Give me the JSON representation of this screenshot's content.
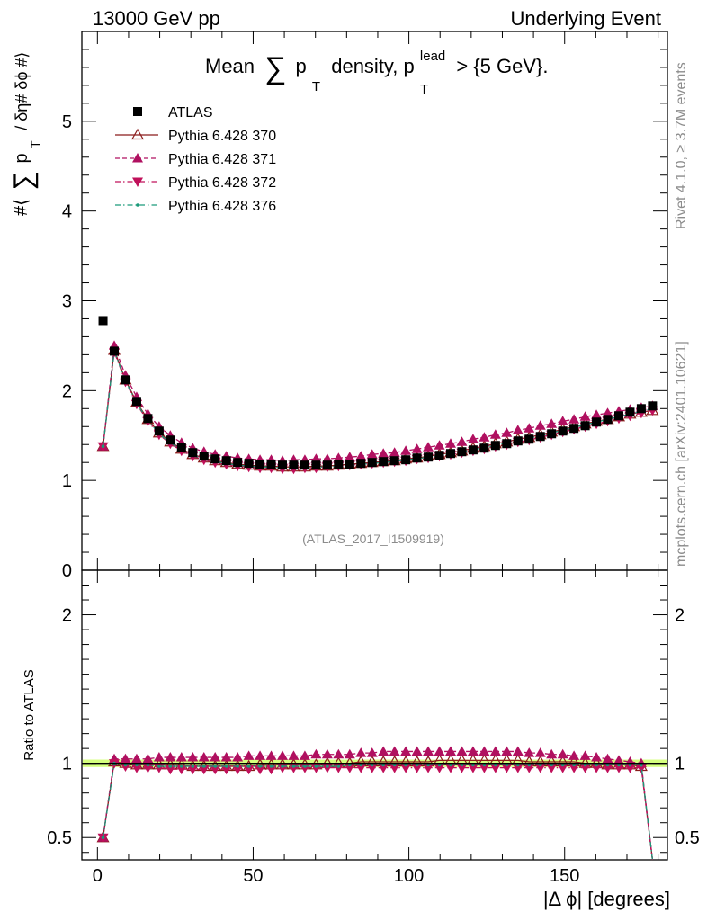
{
  "header": {
    "left": "13000 GeV pp",
    "right": "Underlying Event"
  },
  "side_labels": {
    "rivet": "Rivet 4.1.0, ≥ 3.7M events",
    "mcplots": "mcplots.cern.ch [arXiv:2401.10621]"
  },
  "chart_data": {
    "type": "scatter",
    "title_prefix": "Mean",
    "title_symbol": "∑",
    "title_pt": "p",
    "title_pt_sub": "T",
    "title_middle": "density, p",
    "title_lead_sup": "lead",
    "title_lead_sub": "T",
    "title_suffix": "> {5 GeV}.",
    "analysis_id": "(ATLAS_2017_I1509919)",
    "xlabel": "|Δ ϕ| [degrees]",
    "ylabel_main": "#⟨ ∑ p_T / δη# δϕ #⟩",
    "ylabel_main_parts": {
      "pre": "#⟨",
      "sum": "∑",
      "p": "p",
      "sub": "T",
      "post": "/ δη# δϕ #⟩"
    },
    "ylabel_ratio": "Ratio to ATLAS",
    "xlim": [
      -5,
      183
    ],
    "ylim_main": [
      0,
      6
    ],
    "ylim_ratio": [
      0.35,
      2.3
    ],
    "xticks": [
      "0",
      "50",
      "100",
      "150"
    ],
    "yticks_main": [
      "0",
      "1",
      "2",
      "3",
      "4",
      "5"
    ],
    "yticks_ratio": [
      "0.5",
      "1",
      "2"
    ],
    "x": [
      1.8,
      5.4,
      9.0,
      12.6,
      16.2,
      19.8,
      23.4,
      27.0,
      30.6,
      34.2,
      37.8,
      41.4,
      45.0,
      48.6,
      52.2,
      55.8,
      59.4,
      63.0,
      66.6,
      70.2,
      73.8,
      77.4,
      81.0,
      84.6,
      88.2,
      91.8,
      95.4,
      99.0,
      102.6,
      106.2,
      109.8,
      113.4,
      117.0,
      120.6,
      124.2,
      127.8,
      131.4,
      135.0,
      138.6,
      142.2,
      145.8,
      149.4,
      153.0,
      156.6,
      160.2,
      163.8,
      167.4,
      171.0,
      174.6,
      178.2
    ],
    "series": [
      {
        "name": "ATLAS",
        "marker": "square",
        "color": "#000000",
        "values": [
          2.78,
          2.44,
          2.12,
          1.88,
          1.69,
          1.55,
          1.45,
          1.37,
          1.31,
          1.27,
          1.24,
          1.22,
          1.2,
          1.19,
          1.18,
          1.18,
          1.17,
          1.17,
          1.17,
          1.17,
          1.17,
          1.18,
          1.18,
          1.19,
          1.2,
          1.21,
          1.22,
          1.23,
          1.25,
          1.26,
          1.28,
          1.3,
          1.32,
          1.34,
          1.36,
          1.39,
          1.41,
          1.44,
          1.46,
          1.49,
          1.52,
          1.55,
          1.58,
          1.61,
          1.65,
          1.68,
          1.72,
          1.76,
          1.8,
          1.83
        ],
        "ratio": [
          1,
          1,
          1,
          1,
          1,
          1,
          1,
          1,
          1,
          1,
          1,
          1,
          1,
          1,
          1,
          1,
          1,
          1,
          1,
          1,
          1,
          1,
          1,
          1,
          1,
          1,
          1,
          1,
          1,
          1,
          1,
          1,
          1,
          1,
          1,
          1,
          1,
          1,
          1,
          1,
          1,
          1,
          1,
          1,
          1,
          1,
          1,
          1,
          1,
          1
        ]
      },
      {
        "name": "Pythia 6.428 370",
        "marker": "open-triangle-up",
        "line": "solid",
        "color": "#8b1a1a",
        "values": [
          1.38,
          2.45,
          2.12,
          1.87,
          1.68,
          1.53,
          1.43,
          1.35,
          1.29,
          1.25,
          1.22,
          1.2,
          1.18,
          1.17,
          1.16,
          1.16,
          1.15,
          1.15,
          1.15,
          1.16,
          1.16,
          1.17,
          1.18,
          1.19,
          1.2,
          1.21,
          1.22,
          1.24,
          1.25,
          1.27,
          1.29,
          1.31,
          1.33,
          1.36,
          1.38,
          1.41,
          1.43,
          1.46,
          1.48,
          1.51,
          1.54,
          1.57,
          1.6,
          1.63,
          1.66,
          1.68,
          1.71,
          1.74,
          1.76,
          1.78
        ],
        "ratio": [
          0.5,
          1.01,
          1.0,
          0.99,
          0.99,
          0.99,
          0.99,
          0.99,
          0.98,
          0.98,
          0.98,
          0.98,
          0.98,
          0.98,
          0.99,
          0.99,
          0.99,
          0.99,
          0.99,
          0.99,
          1.0,
          1.0,
          1.0,
          1.01,
          1.01,
          1.01,
          1.01,
          1.01,
          1.01,
          1.01,
          1.02,
          1.02,
          1.02,
          1.02,
          1.02,
          1.02,
          1.02,
          1.02,
          1.01,
          1.01,
          1.01,
          1.01,
          1.01,
          1.0,
          1.0,
          0.99,
          0.99,
          0.99,
          0.98,
          0.33
        ]
      },
      {
        "name": "Pythia 6.428 371",
        "marker": "triangle-up",
        "line": "dashed",
        "color": "#b01060",
        "values": [
          1.38,
          2.5,
          2.17,
          1.93,
          1.74,
          1.6,
          1.5,
          1.42,
          1.36,
          1.32,
          1.29,
          1.27,
          1.25,
          1.24,
          1.23,
          1.23,
          1.22,
          1.23,
          1.23,
          1.24,
          1.24,
          1.25,
          1.26,
          1.27,
          1.29,
          1.3,
          1.31,
          1.33,
          1.35,
          1.37,
          1.39,
          1.41,
          1.43,
          1.46,
          1.48,
          1.51,
          1.53,
          1.56,
          1.58,
          1.61,
          1.63,
          1.66,
          1.68,
          1.71,
          1.73,
          1.75,
          1.77,
          1.79,
          1.81,
          1.83
        ],
        "ratio": [
          0.5,
          1.03,
          1.03,
          1.03,
          1.03,
          1.04,
          1.04,
          1.04,
          1.04,
          1.04,
          1.04,
          1.04,
          1.04,
          1.05,
          1.05,
          1.05,
          1.05,
          1.05,
          1.05,
          1.06,
          1.06,
          1.06,
          1.06,
          1.07,
          1.07,
          1.08,
          1.08,
          1.08,
          1.08,
          1.08,
          1.08,
          1.08,
          1.08,
          1.08,
          1.08,
          1.08,
          1.08,
          1.08,
          1.07,
          1.07,
          1.06,
          1.06,
          1.05,
          1.05,
          1.04,
          1.03,
          1.02,
          1.01,
          1.0,
          0.33
        ]
      },
      {
        "name": "Pythia 6.428 372",
        "marker": "triangle-down",
        "line": "dash-dot",
        "color": "#c0105a",
        "values": [
          1.38,
          2.43,
          2.1,
          1.85,
          1.66,
          1.51,
          1.41,
          1.33,
          1.27,
          1.23,
          1.2,
          1.18,
          1.16,
          1.15,
          1.14,
          1.14,
          1.13,
          1.13,
          1.14,
          1.14,
          1.15,
          1.16,
          1.17,
          1.18,
          1.19,
          1.2,
          1.21,
          1.22,
          1.24,
          1.25,
          1.27,
          1.29,
          1.31,
          1.33,
          1.35,
          1.38,
          1.4,
          1.43,
          1.45,
          1.48,
          1.51,
          1.54,
          1.57,
          1.6,
          1.63,
          1.66,
          1.69,
          1.72,
          1.75,
          1.78
        ],
        "ratio": [
          0.5,
          1.0,
          0.98,
          0.97,
          0.97,
          0.97,
          0.96,
          0.96,
          0.96,
          0.96,
          0.96,
          0.96,
          0.96,
          0.96,
          0.96,
          0.96,
          0.97,
          0.97,
          0.97,
          0.97,
          0.97,
          0.97,
          0.97,
          0.97,
          0.97,
          0.97,
          0.97,
          0.97,
          0.97,
          0.97,
          0.97,
          0.97,
          0.97,
          0.97,
          0.97,
          0.97,
          0.97,
          0.97,
          0.97,
          0.97,
          0.97,
          0.97,
          0.97,
          0.97,
          0.97,
          0.97,
          0.97,
          0.97,
          0.97,
          0.33
        ]
      },
      {
        "name": "Pythia 6.428 376",
        "marker": "small-dot",
        "line": "dash-dot",
        "color": "#1a9a7a",
        "values": [
          1.38,
          2.44,
          2.11,
          1.86,
          1.67,
          1.52,
          1.42,
          1.34,
          1.28,
          1.24,
          1.21,
          1.19,
          1.17,
          1.16,
          1.15,
          1.15,
          1.14,
          1.14,
          1.14,
          1.15,
          1.15,
          1.16,
          1.17,
          1.18,
          1.19,
          1.2,
          1.21,
          1.23,
          1.24,
          1.26,
          1.28,
          1.3,
          1.32,
          1.34,
          1.37,
          1.39,
          1.42,
          1.44,
          1.47,
          1.5,
          1.53,
          1.56,
          1.59,
          1.62,
          1.65,
          1.68,
          1.71,
          1.74,
          1.77,
          1.8
        ],
        "ratio": [
          0.5,
          1.0,
          0.99,
          0.99,
          0.99,
          0.98,
          0.98,
          0.98,
          0.98,
          0.98,
          0.98,
          0.98,
          0.98,
          0.98,
          0.98,
          0.98,
          0.98,
          0.98,
          0.98,
          0.98,
          0.98,
          0.98,
          0.99,
          0.99,
          0.99,
          0.99,
          0.99,
          0.99,
          0.99,
          0.99,
          0.99,
          0.99,
          0.99,
          0.99,
          0.99,
          0.99,
          0.99,
          0.99,
          0.99,
          0.99,
          0.99,
          0.99,
          0.99,
          0.99,
          0.99,
          0.99,
          0.99,
          0.99,
          0.99,
          0.33
        ]
      }
    ],
    "ratio_band_color": "#ccff66"
  }
}
